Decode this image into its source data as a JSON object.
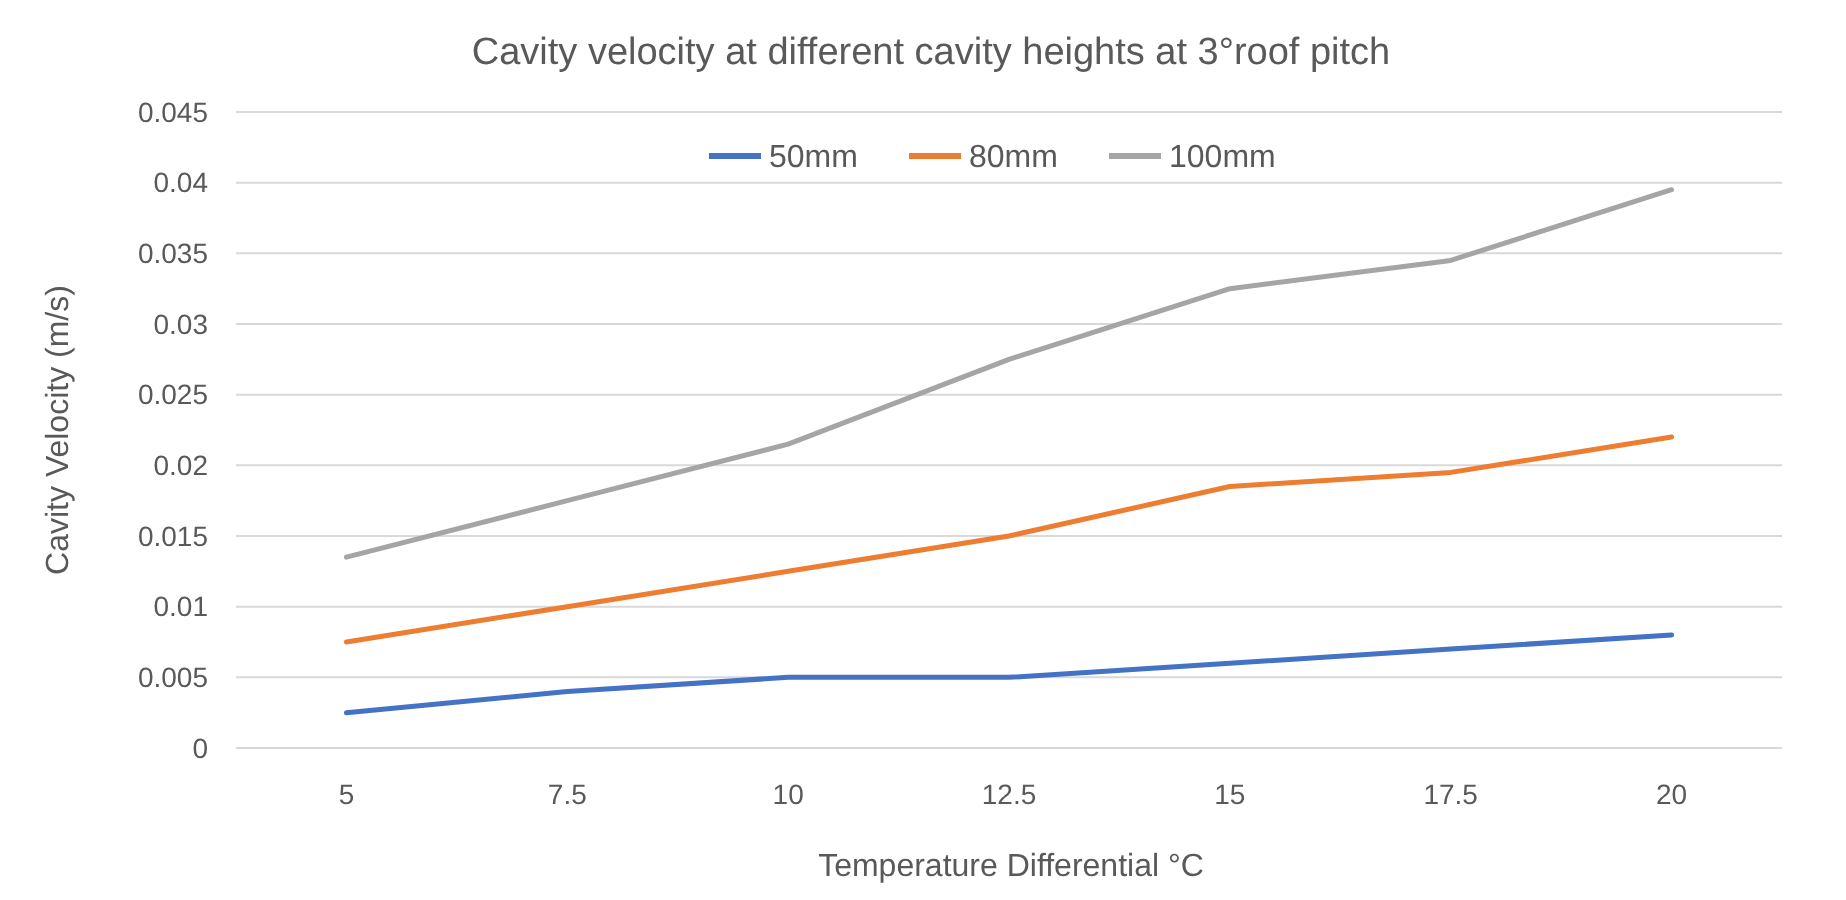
{
  "chart_data": {
    "type": "line",
    "title": "Cavity velocity at different cavity heights at 3°roof pitch",
    "xlabel": "Temperature Differential °C",
    "ylabel": "Cavity Velocity (m/s)",
    "categories": [
      "5",
      "7.5",
      "10",
      "12.5",
      "15",
      "17.5",
      "20"
    ],
    "series": [
      {
        "name": "50mm",
        "color": "#4472c4",
        "values": [
          0.0025,
          0.004,
          0.005,
          0.005,
          0.006,
          0.007,
          0.008
        ]
      },
      {
        "name": "80mm",
        "color": "#ed7d31",
        "values": [
          0.0075,
          0.01,
          0.0125,
          0.015,
          0.0185,
          0.0195,
          0.022
        ]
      },
      {
        "name": "100mm",
        "color": "#a5a5a5",
        "values": [
          0.0135,
          0.0175,
          0.0215,
          0.0275,
          0.0325,
          0.0345,
          0.0395
        ]
      }
    ],
    "ylim": [
      0,
      0.045
    ],
    "yticks": [
      0,
      0.005,
      0.01,
      0.015,
      0.02,
      0.025,
      0.03,
      0.035,
      0.04,
      0.045
    ],
    "grid": "y",
    "legend": "top",
    "marker": "none",
    "line_style": "solid"
  }
}
